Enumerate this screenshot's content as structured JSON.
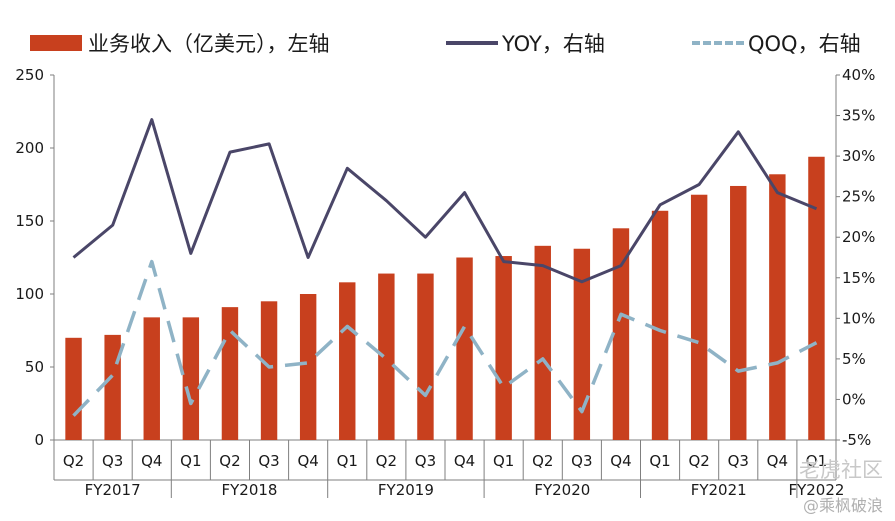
{
  "legend": {
    "bar_label": "业务收入（亿美元），左轴",
    "yoy_label": "YOY，右轴",
    "qoq_label": "QOQ，右轴"
  },
  "colors": {
    "bar": "#c8401e",
    "yoy": "#4a4668",
    "qoq": "#8fb3c6",
    "axis": "#7f7f7f",
    "text": "#1a1a1a"
  },
  "watermark": {
    "line1": "老虎社区",
    "line2": "@乘枫破浪"
  },
  "chart_data": {
    "type": "bar+line",
    "quarters": [
      "Q2",
      "Q3",
      "Q4",
      "Q1",
      "Q2",
      "Q3",
      "Q4",
      "Q1",
      "Q2",
      "Q3",
      "Q4",
      "Q1",
      "Q2",
      "Q3",
      "Q4",
      "Q1",
      "Q2",
      "Q3",
      "Q4",
      "Q1"
    ],
    "fiscal_years": [
      {
        "label": "FY2017",
        "count": 3
      },
      {
        "label": "FY2018",
        "count": 4
      },
      {
        "label": "FY2019",
        "count": 4
      },
      {
        "label": "FY2020",
        "count": 4
      },
      {
        "label": "FY2021",
        "count": 4
      },
      {
        "label": "FY2022",
        "count": 1
      }
    ],
    "left_axis": {
      "min": 0,
      "max": 250,
      "ticks": [
        "0",
        "50",
        "100",
        "150",
        "200",
        "250"
      ]
    },
    "right_axis": {
      "min": -5,
      "max": 40,
      "ticks": [
        "-5%",
        "0%",
        "5%",
        "10%",
        "15%",
        "20%",
        "25%",
        "30%",
        "35%",
        "40%"
      ]
    },
    "series": [
      {
        "name": "业务收入（亿美元），左轴",
        "kind": "bar",
        "axis": "left",
        "values": [
          70,
          72,
          84,
          84,
          91,
          95,
          100,
          108,
          114,
          114,
          125,
          126,
          133,
          131,
          145,
          157,
          168,
          174,
          182,
          194
        ]
      },
      {
        "name": "YOY，右轴",
        "kind": "line",
        "axis": "right",
        "values": [
          17.5,
          21.5,
          34.5,
          18.0,
          30.5,
          31.5,
          17.5,
          28.5,
          24.5,
          20.0,
          25.5,
          17.0,
          16.5,
          14.5,
          16.5,
          24.0,
          26.5,
          33.0,
          25.5,
          23.5
        ]
      },
      {
        "name": "QOQ，右轴",
        "kind": "dashed-line",
        "axis": "right",
        "values": [
          -2.0,
          3.0,
          17.0,
          -0.5,
          8.5,
          4.0,
          4.5,
          9.0,
          5.0,
          0.5,
          9.0,
          1.5,
          5.0,
          -1.5,
          10.5,
          8.5,
          7.0,
          3.5,
          4.5,
          7.0
        ]
      }
    ]
  }
}
